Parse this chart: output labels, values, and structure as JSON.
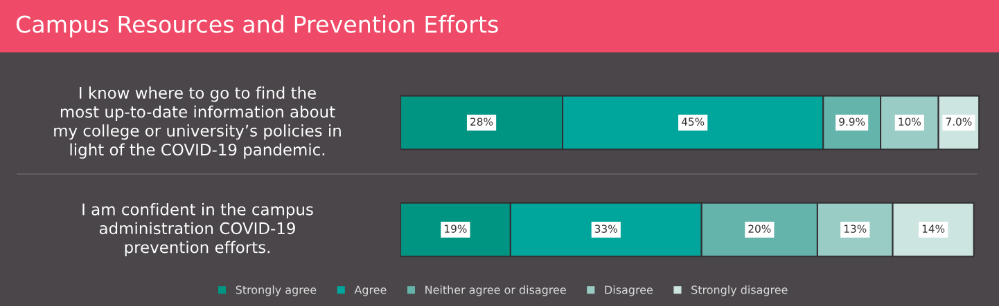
{
  "chart_data": {
    "type": "bar",
    "orientation": "horizontal",
    "stacked": true,
    "title": "Campus Resources and Prevention Efforts",
    "categories": [
      "I know where to go to find the\nmost up-to-date information about\nmy college or university’s policies in\nlight of the COVID-19 pandemic.",
      "I am confident in the campus\nadministration COVID-19\nprevention efforts."
    ],
    "series": [
      {
        "name": "Strongly agree",
        "color": "#009583",
        "values": [
          28,
          19
        ],
        "value_labels": [
          "28%",
          "19%"
        ]
      },
      {
        "name": "Agree",
        "color": "#00a59b",
        "values": [
          45,
          33
        ],
        "value_labels": [
          "45%",
          "33%"
        ]
      },
      {
        "name": "Neither agree or disagree",
        "color": "#64b4ab",
        "values": [
          9.9,
          20
        ],
        "value_labels": [
          "9.9%",
          "20%"
        ]
      },
      {
        "name": "Disagree",
        "color": "#9accc6",
        "values": [
          10,
          13
        ],
        "value_labels": [
          "10%",
          "13%"
        ]
      },
      {
        "name": "Strongly disagree",
        "color": "#cde5e1",
        "values": [
          7.0,
          14
        ],
        "value_labels": [
          "7.0%",
          "14%"
        ]
      }
    ],
    "xlim": [
      0,
      100
    ],
    "tick_labels": false,
    "legend": "bottom"
  }
}
